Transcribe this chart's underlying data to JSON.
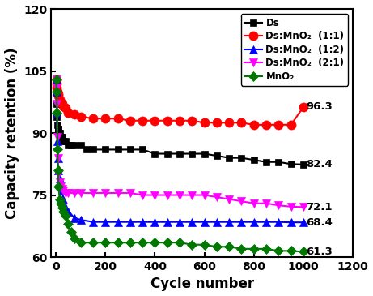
{
  "title": "",
  "xlabel": "Cycle number",
  "ylabel": "Capacity retention (%)",
  "xlim": [
    -20,
    1200
  ],
  "ylim": [
    60,
    120
  ],
  "yticks": [
    60,
    75,
    90,
    105,
    120
  ],
  "xticks": [
    0,
    200,
    400,
    600,
    800,
    1000,
    1200
  ],
  "series": [
    {
      "label": "Ds",
      "color": "#000000",
      "marker": "s",
      "markersize": 6,
      "end_label": "82.4",
      "end_y": 82.4,
      "x": [
        1,
        2,
        4,
        6,
        8,
        10,
        12,
        15,
        20,
        25,
        30,
        40,
        50,
        60,
        75,
        100,
        125,
        150,
        200,
        250,
        300,
        350,
        400,
        450,
        500,
        550,
        600,
        650,
        700,
        750,
        800,
        850,
        900,
        950,
        1000
      ],
      "y": [
        100,
        97,
        94,
        92,
        91,
        91,
        90,
        90,
        89,
        89,
        88,
        88,
        87,
        87,
        87,
        87,
        86,
        86,
        86,
        86,
        86,
        86,
        85,
        85,
        85,
        85,
        85,
        84.5,
        84,
        84,
        83.5,
        83,
        83,
        82.5,
        82.4
      ]
    },
    {
      "label": "Ds:MnO₂  (1:1)",
      "color": "#ff0000",
      "marker": "o",
      "markersize": 8,
      "end_label": "96.3",
      "end_y": 96.3,
      "x": [
        1,
        2,
        4,
        6,
        8,
        10,
        15,
        20,
        25,
        30,
        40,
        50,
        75,
        100,
        150,
        200,
        250,
        300,
        350,
        400,
        450,
        500,
        550,
        600,
        650,
        700,
        750,
        800,
        850,
        900,
        950,
        1000
      ],
      "y": [
        103,
        102,
        101,
        100,
        99.5,
        99,
        98,
        97.5,
        97,
        96.5,
        96,
        95,
        94.5,
        94,
        93.5,
        93.5,
        93.5,
        93,
        93,
        93,
        93,
        93,
        93,
        92.5,
        92.5,
        92.5,
        92.5,
        92,
        92,
        92,
        92,
        96.3
      ]
    },
    {
      "label": "Ds:MnO₂  (1:2)",
      "color": "#0000ff",
      "marker": "^",
      "markersize": 7,
      "end_label": "68.4",
      "end_y": 68.4,
      "x": [
        1,
        2,
        4,
        6,
        8,
        10,
        15,
        20,
        25,
        30,
        40,
        50,
        75,
        100,
        150,
        200,
        250,
        300,
        350,
        400,
        450,
        500,
        550,
        600,
        650,
        700,
        750,
        800,
        850,
        900,
        950,
        1000
      ],
      "y": [
        103,
        100,
        95,
        88,
        84,
        81,
        79,
        77,
        76,
        74,
        72,
        71,
        69.5,
        69,
        68.5,
        68.5,
        68.5,
        68.5,
        68.5,
        68.5,
        68.5,
        68.5,
        68.5,
        68.5,
        68.5,
        68.5,
        68.5,
        68.5,
        68.5,
        68.5,
        68.4,
        68.4
      ]
    },
    {
      "label": "Ds:MnO₂  (2:1)",
      "color": "#ff00ff",
      "marker": "v",
      "markersize": 7,
      "end_label": "72.1",
      "end_y": 72.1,
      "x": [
        1,
        2,
        4,
        6,
        8,
        10,
        15,
        20,
        25,
        30,
        40,
        50,
        75,
        100,
        150,
        200,
        250,
        300,
        350,
        400,
        450,
        500,
        550,
        600,
        650,
        700,
        750,
        800,
        850,
        900,
        950,
        1000
      ],
      "y": [
        103,
        101,
        97,
        89,
        84,
        80,
        78,
        77,
        76.5,
        76,
        75.5,
        75.5,
        75.5,
        75.5,
        75.5,
        75.5,
        75.5,
        75.5,
        75,
        75,
        75,
        75,
        75,
        75,
        74.5,
        74,
        73.5,
        73,
        73,
        72.5,
        72.2,
        72.1
      ]
    },
    {
      "label": "MnO₂",
      "color": "#007700",
      "marker": "D",
      "markersize": 6,
      "end_label": "61.3",
      "end_y": 61.3,
      "x": [
        1,
        2,
        4,
        6,
        8,
        10,
        15,
        20,
        25,
        30,
        40,
        50,
        60,
        75,
        100,
        150,
        200,
        250,
        300,
        350,
        400,
        450,
        500,
        550,
        600,
        650,
        700,
        750,
        800,
        850,
        900,
        950,
        1000
      ],
      "y": [
        103,
        100,
        95,
        86,
        81,
        77,
        74,
        73,
        72,
        71,
        70,
        68,
        66,
        64.5,
        63.5,
        63.5,
        63.5,
        63.5,
        63.5,
        63.5,
        63.5,
        63.5,
        63.5,
        63,
        63,
        62.5,
        62.5,
        62,
        62,
        62,
        61.5,
        61.5,
        61.3
      ]
    }
  ],
  "background_color": "white",
  "legend_loc": "upper right",
  "legend_fontsize": 8.5,
  "tick_fontsize": 10,
  "label_fontsize": 12
}
